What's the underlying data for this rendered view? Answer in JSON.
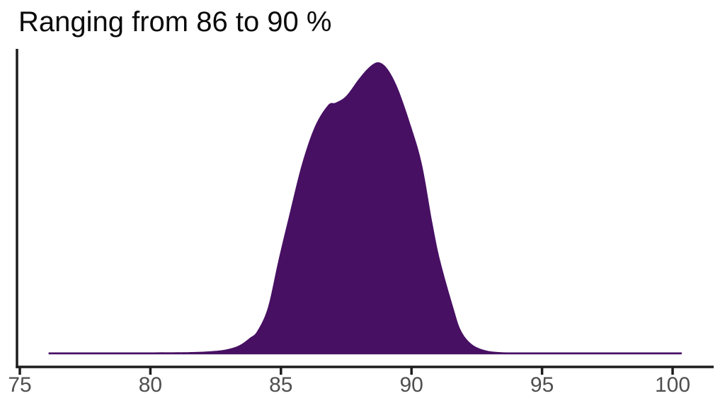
{
  "figure": {
    "title": "Ranging from 86 to 90 %"
  },
  "chart_data": {
    "type": "area",
    "subtype": "density",
    "title": "Ranging from 86 to 90 %",
    "xlabel": "",
    "ylabel": "",
    "x_ticks": [
      75,
      80,
      85,
      90,
      95,
      100
    ],
    "x_tick_labels": [
      "75",
      "80",
      "85",
      "90",
      "95",
      "100"
    ],
    "xlim": [
      74.8,
      101.6
    ],
    "ylim_relative": [
      0,
      1.05
    ],
    "grid": false,
    "legend": false,
    "y_axis_labels_shown": false,
    "series": [
      {
        "name": "density",
        "support": [
          76.1,
          100.35
        ],
        "peak_x": 88.75,
        "shoulder_x": 86.9,
        "x": [
          76.1,
          78.0,
          80.0,
          81.5,
          82.3,
          82.9,
          83.4,
          83.8,
          84.1,
          84.5,
          84.9,
          85.3,
          85.8,
          86.3,
          86.8,
          87.1,
          87.5,
          88.0,
          88.4,
          88.75,
          89.1,
          89.5,
          90.0,
          90.4,
          90.8,
          91.1,
          91.6,
          91.9,
          92.3,
          92.8,
          93.4,
          94.2,
          96.0,
          98.0,
          100.35
        ],
        "y_relative": [
          0.006,
          0.006,
          0.006,
          0.007,
          0.01,
          0.016,
          0.03,
          0.055,
          0.08,
          0.16,
          0.32,
          0.47,
          0.65,
          0.78,
          0.853,
          0.862,
          0.885,
          0.945,
          0.985,
          1.0,
          0.975,
          0.905,
          0.776,
          0.65,
          0.45,
          0.32,
          0.16,
          0.08,
          0.035,
          0.014,
          0.007,
          0.006,
          0.006,
          0.006,
          0.006
        ]
      }
    ],
    "colors": {
      "fill": "#471063",
      "axis": "#1c1c1c",
      "tick": "#1c1c1c",
      "tick_label": "#4f4f4f",
      "title": "#0a0a0a"
    }
  }
}
